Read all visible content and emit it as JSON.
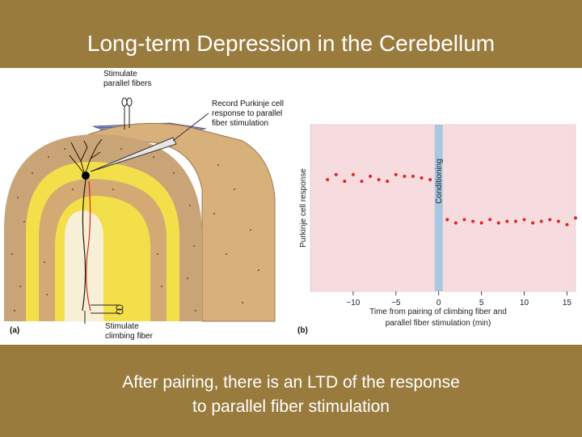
{
  "slide": {
    "title": "Long-term Depression in the Cerebellum",
    "caption_line1": "After pairing, there is an LTD of the response",
    "caption_line2": "to parallel fiber stimulation"
  },
  "panel_a": {
    "label": "(a)",
    "stim_parallel_line1": "Stimulate",
    "stim_parallel_line2": "parallel fibers",
    "record_line1": "Record Purkinje cell",
    "record_line2": "response to parallel",
    "record_line3": "fiber stimulation",
    "stim_climbing_line1": "Stimulate",
    "stim_climbing_line2": "climbing fiber"
  },
  "panel_b": {
    "label": "(b)",
    "conditioning_label": "Conditioning",
    "ylabel": "Purkinje cell response",
    "xlabel_line1": "Time from pairing of climbing fiber and",
    "xlabel_line2": "parallel fiber stimulation (min)"
  },
  "colors": {
    "slide_background": "#9a7b3e",
    "plot_background": "#f7dcdf",
    "conditioning_band": "#a6c8e2",
    "points": "#e02424"
  },
  "chart_data": {
    "type": "scatter",
    "title": "",
    "xlabel": "Time from pairing of climbing fiber and parallel fiber stimulation (min)",
    "ylabel": "Purkinje cell response",
    "xlim": [
      -15,
      16
    ],
    "ylim": [
      0,
      1
    ],
    "xticks": [
      -10,
      -5,
      0,
      5,
      10,
      15
    ],
    "xtick_labels": [
      "−10",
      "−5",
      "0",
      "5",
      "10",
      "15"
    ],
    "conditioning_at": 0,
    "series": [
      {
        "values": [
          [
            -13.0,
            0.67
          ],
          [
            -12.0,
            0.7
          ],
          [
            -11.0,
            0.66
          ],
          [
            -10.0,
            0.7
          ],
          [
            -9.0,
            0.66
          ],
          [
            -8.0,
            0.69
          ],
          [
            -7.0,
            0.67
          ],
          [
            -6.0,
            0.66
          ],
          [
            -5.0,
            0.7
          ],
          [
            -4.0,
            0.69
          ],
          [
            -3.0,
            0.69
          ],
          [
            -2.0,
            0.68
          ],
          [
            -1.0,
            0.67
          ],
          [
            1.0,
            0.43
          ],
          [
            2.0,
            0.41
          ],
          [
            3.0,
            0.43
          ],
          [
            4.0,
            0.42
          ],
          [
            5.0,
            0.41
          ],
          [
            6.0,
            0.43
          ],
          [
            7.0,
            0.41
          ],
          [
            8.0,
            0.42
          ],
          [
            9.0,
            0.42
          ],
          [
            10.0,
            0.43
          ],
          [
            11.0,
            0.41
          ],
          [
            12.0,
            0.42
          ],
          [
            13.0,
            0.43
          ],
          [
            14.0,
            0.42
          ],
          [
            15.0,
            0.4
          ],
          [
            16.0,
            0.44
          ]
        ]
      }
    ]
  }
}
